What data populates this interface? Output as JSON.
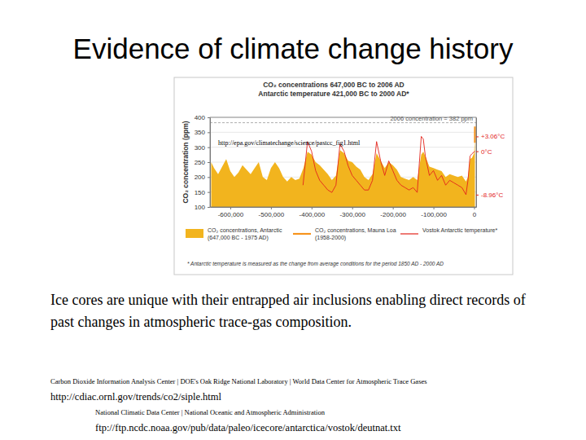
{
  "slide": {
    "title": "Evidence of climate change history",
    "caption": "Ice cores are unique with their entrapped air inclusions enabling direct records of past changes in atmospheric trace-gas composition.",
    "sources": [
      {
        "organization": "Carbon Dioxide Information Analysis Center | DOE's Oak Ridge National Laboratory | World Data Center for Atmospheric Trace Gases",
        "url": "http://cdiac.ornl.gov/trends/co2/siple.html"
      },
      {
        "organization": "National Climatic Data Center | National Oceanic and Atmospheric Administration",
        "url": "ftp://ftp.ncdc.noaa.gov/pub/data/paleo/icecore/antarctica/vostok/deutnat.txt"
      }
    ]
  },
  "chart_data": {
    "type": "area",
    "title": "CO₂ concentrations 647,000 BC to 2006 AD",
    "subtitle": "Antarctic temperature 421,000 BC to 2000 AD*",
    "y_label": "CO₂ concentration (ppm)",
    "xlim": [
      -650000,
      5000
    ],
    "xticks": [
      {
        "value": -600000,
        "label": "-600,000"
      },
      {
        "value": -500000,
        "label": "-500,000"
      },
      {
        "value": -400000,
        "label": "-400,000"
      },
      {
        "value": -300000,
        "label": "-300,000"
      },
      {
        "value": -200000,
        "label": "-200,000"
      },
      {
        "value": -100000,
        "label": "-100,000"
      },
      0
    ],
    "ylim": [
      100,
      400
    ],
    "yticks": [
      100,
      150,
      200,
      250,
      300,
      350,
      400
    ],
    "y2lim": [
      -11.5,
      7
    ],
    "y2ticks": [
      {
        "value": 3.06,
        "label": "+3.06°C"
      },
      {
        "value": 0,
        "label": "0°C"
      },
      {
        "value": -8.96,
        "label": "-8.96°C"
      }
    ],
    "grid": true,
    "legend": "bottom",
    "series": [
      {
        "name": "CO₂ concentrations, Antarctic (647,000 BC - 1975 AD)",
        "type": "area",
        "color": "#f2b41e",
        "x": [
          -647000,
          -640000,
          -630000,
          -620000,
          -610000,
          -600000,
          -590000,
          -580000,
          -570000,
          -560000,
          -550000,
          -540000,
          -530000,
          -520000,
          -510000,
          -500000,
          -490000,
          -480000,
          -470000,
          -460000,
          -450000,
          -440000,
          -430000,
          -420000,
          -410000,
          -400000,
          -390000,
          -380000,
          -370000,
          -360000,
          -350000,
          -340000,
          -330000,
          -320000,
          -310000,
          -300000,
          -290000,
          -280000,
          -270000,
          -260000,
          -250000,
          -240000,
          -230000,
          -220000,
          -210000,
          -200000,
          -190000,
          -180000,
          -170000,
          -160000,
          -150000,
          -140000,
          -130000,
          -125000,
          -120000,
          -110000,
          -100000,
          -90000,
          -80000,
          -70000,
          -60000,
          -50000,
          -40000,
          -30000,
          -20000,
          -15000,
          -10000,
          -5000,
          0,
          1975
        ],
        "values": [
          250,
          230,
          210,
          235,
          260,
          220,
          200,
          215,
          240,
          225,
          210,
          230,
          250,
          200,
          190,
          230,
          250,
          230,
          200,
          185,
          200,
          190,
          195,
          230,
          285,
          275,
          250,
          240,
          225,
          210,
          190,
          205,
          290,
          280,
          255,
          250,
          235,
          225,
          200,
          190,
          210,
          280,
          255,
          230,
          250,
          240,
          225,
          200,
          195,
          190,
          200,
          190,
          275,
          285,
          270,
          235,
          230,
          225,
          220,
          200,
          210,
          205,
          200,
          205,
          185,
          200,
          260,
          265,
          280,
          331
        ]
      },
      {
        "name": "CO₂ concentrations, Mauna Loa (1958-2000)",
        "type": "line",
        "color": "#f7941d",
        "x": [
          1958,
          1970,
          1980,
          1990,
          2000
        ],
        "values": [
          315,
          326,
          339,
          354,
          369
        ]
      },
      {
        "name": "Vostok Antarctic temperature*",
        "type": "line",
        "color": "#e3241b",
        "axis": "y2",
        "x": [
          -421000,
          -410000,
          -400000,
          -390000,
          -380000,
          -370000,
          -360000,
          -350000,
          -340000,
          -330000,
          -320000,
          -310000,
          -300000,
          -290000,
          -280000,
          -270000,
          -260000,
          -250000,
          -240000,
          -230000,
          -220000,
          -210000,
          -200000,
          -190000,
          -180000,
          -170000,
          -160000,
          -150000,
          -140000,
          -130000,
          -125000,
          -120000,
          -110000,
          -100000,
          -90000,
          -80000,
          -70000,
          -60000,
          -50000,
          -40000,
          -30000,
          -20000,
          -15000,
          -10000,
          -5000,
          2000
        ],
        "values": [
          -7,
          2,
          0,
          -4,
          -6,
          -7,
          -8,
          -8.5,
          -7,
          1.5,
          0,
          -3,
          -5,
          -6,
          -7,
          -8,
          -8,
          -6,
          2,
          -2,
          -5,
          -2,
          -4,
          -6,
          -7,
          -7.5,
          -8,
          -7.5,
          -8.5,
          3.06,
          2.5,
          -1,
          -5,
          -4,
          -6,
          -5,
          -7,
          -6,
          -6.5,
          -7,
          -7.5,
          -8.96,
          -6,
          -1,
          -0.5,
          0
        ]
      }
    ],
    "reference_lines": [
      {
        "value": 382,
        "label": "2006 concentration = 382 ppm",
        "line_style": "dashed"
      }
    ],
    "annotations": [
      "http://epa.gov/climatechange/science/pastcc_fig1.html"
    ],
    "footnote": "* Antarctic temperature is measured as the change from average conditions for the period 1850 AD - 2000 AD"
  }
}
